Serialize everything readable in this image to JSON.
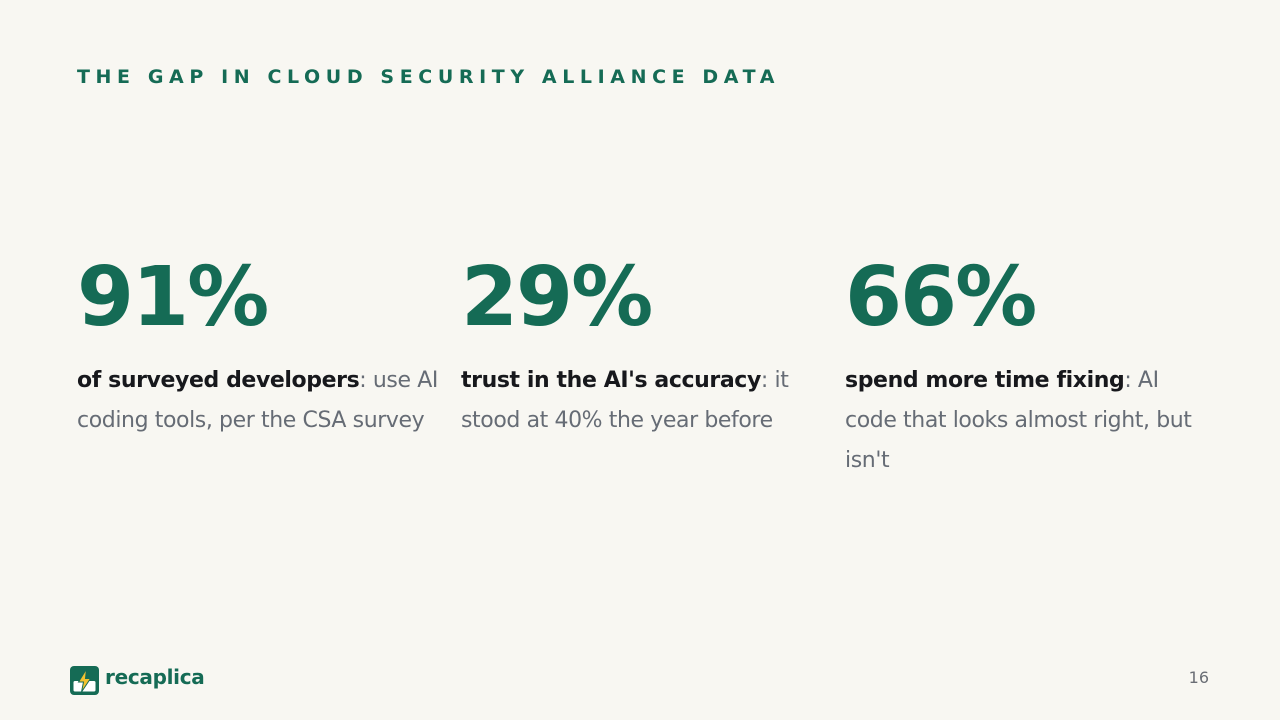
{
  "slide": {
    "kicker": "THE GAP IN CLOUD SECURITY ALLIANCE DATA",
    "page_number": "16"
  },
  "stats": [
    {
      "value": "91%",
      "lead": "of surveyed developers",
      "rest": ": use AI coding tools, per the CSA survey"
    },
    {
      "value": "29%",
      "lead": "trust in the AI's accuracy",
      "rest": ": it stood at 40% the year before"
    },
    {
      "value": "66%",
      "lead": "spend more time fixing",
      "rest": ": AI code that looks almost right, but isn't"
    }
  ],
  "brand": {
    "name": "recaplica",
    "icon": "lightning-bolt-icon"
  },
  "colors": {
    "accent": "#156b55",
    "background": "#f8f7f2",
    "text_strong": "#17181c",
    "text_muted": "#666c75",
    "icon_bolt": "#f2c230"
  }
}
